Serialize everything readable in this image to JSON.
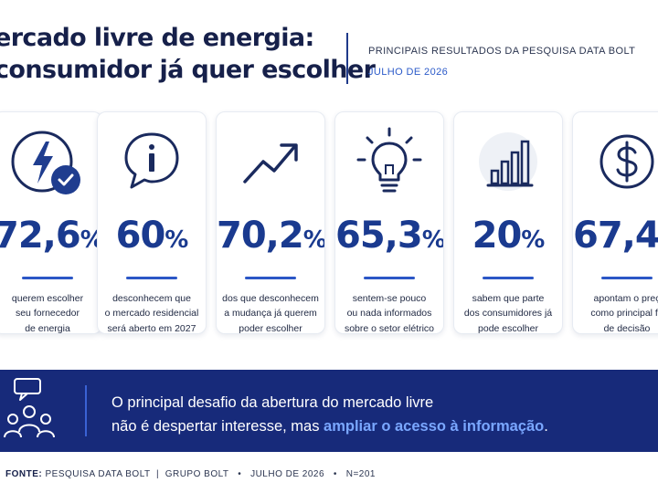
{
  "header": {
    "title_line1": "ercado livre de energia:",
    "title_line2": "consumidor já quer escolher",
    "subtitle": "PRINCIPAIS RESULTADOS DA PESQUISA DATA BOLT",
    "date": "JULHO DE 2026"
  },
  "cards": [
    {
      "icon": "lightning-check-icon",
      "value": "72,6",
      "unit": "%",
      "desc": "querem escolher\nseu fornecedor\nde energia"
    },
    {
      "icon": "info-chat-icon",
      "value": "60",
      "unit": "%",
      "desc": "desconhecem que\no mercado residencial\nserá aberto em 2027"
    },
    {
      "icon": "trend-up-icon",
      "value": "70,2",
      "unit": "%",
      "desc": "dos que desconhecem\na mudança já querem\npoder escolher"
    },
    {
      "icon": "lightbulb-icon",
      "value": "65,3",
      "unit": "%",
      "desc": "sentem-se pouco\nou nada informados\nsobre o setor elétrico"
    },
    {
      "icon": "bar-chart-icon",
      "value": "20",
      "unit": "%",
      "desc": "sabem que parte\ndos consumidores já\npode escolher fornecedor"
    },
    {
      "icon": "dollar-icon",
      "value": "67,4",
      "unit": "%",
      "desc": "apontam o preç\ncomo principal fa\nde decisão"
    }
  ],
  "banner": {
    "line1": "O principal desafio da abertura do mercado livre",
    "line2_plain": "não é despertar interesse, mas ",
    "line2_highlight": "ampliar o acesso à informação",
    "line2_end": "."
  },
  "footer": {
    "label": "FONTE:",
    "source": "PESQUISA DATA BOLT",
    "sep1": "|",
    "group": "GRUPO BOLT",
    "dot1": "•",
    "date": "JULHO DE 2026",
    "dot2": "•",
    "sample": "N=201"
  },
  "colors": {
    "navy": "#16204a",
    "accent_blue": "#1a3a8f",
    "banner_bg": "#172a7a",
    "highlight": "#7aa7ff",
    "check_badge": "#1f3d8f"
  }
}
